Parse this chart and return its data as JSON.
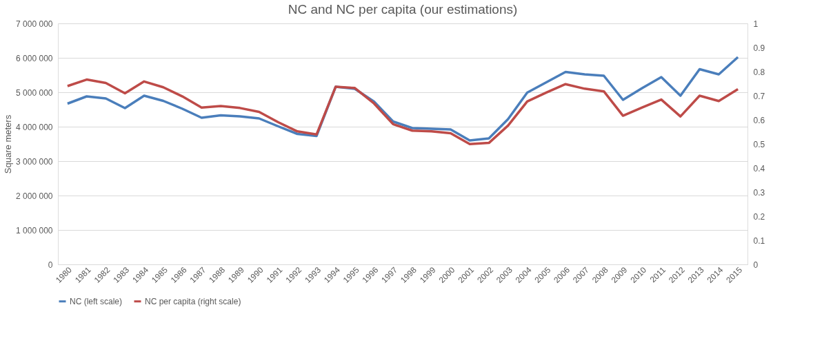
{
  "chart_data": {
    "type": "line",
    "title": "NC and NC per capita (our estimations)",
    "ylabel": "Square meters",
    "categories": [
      "1980",
      "1981",
      "1982",
      "1983",
      "1984",
      "1985",
      "1986",
      "1987",
      "1988",
      "1989",
      "1990",
      "1991",
      "1992",
      "1993",
      "1994",
      "1995",
      "1996",
      "1997",
      "1998",
      "1999",
      "2000",
      "2001",
      "2002",
      "2003",
      "2004",
      "2005",
      "2006",
      "2007",
      "2008",
      "2009",
      "2010",
      "2011",
      "2012",
      "2013",
      "2014",
      "2015"
    ],
    "series": [
      {
        "name": "NC (left scale)",
        "color": "#4a7ebb",
        "axis": "y",
        "values": [
          4670000,
          4880000,
          4820000,
          4540000,
          4900000,
          4750000,
          4520000,
          4260000,
          4330000,
          4300000,
          4240000,
          4010000,
          3790000,
          3730000,
          5160000,
          5100000,
          4730000,
          4150000,
          3960000,
          3940000,
          3920000,
          3600000,
          3660000,
          4220000,
          4990000,
          5290000,
          5590000,
          5520000,
          5480000,
          4780000,
          5120000,
          5440000,
          4900000,
          5670000,
          5520000,
          6020000
        ]
      },
      {
        "name": "NC per capita (right scale)",
        "color": "#be4b48",
        "axis": "y2",
        "values": [
          0.74,
          0.767,
          0.753,
          0.71,
          0.759,
          0.735,
          0.697,
          0.651,
          0.657,
          0.649,
          0.633,
          0.59,
          0.552,
          0.539,
          0.737,
          0.732,
          0.668,
          0.582,
          0.555,
          0.552,
          0.544,
          0.499,
          0.504,
          0.576,
          0.676,
          0.713,
          0.748,
          0.729,
          0.718,
          0.617,
          0.651,
          0.684,
          0.614,
          0.7,
          0.678,
          0.727
        ]
      }
    ],
    "ylim": [
      0,
      7000000
    ],
    "yticks": [
      {
        "value": 0,
        "label": "0"
      },
      {
        "value": 1000000,
        "label": "1 000 000"
      },
      {
        "value": 2000000,
        "label": "2 000 000"
      },
      {
        "value": 3000000,
        "label": "3 000 000"
      },
      {
        "value": 4000000,
        "label": "4 000 000"
      },
      {
        "value": 5000000,
        "label": "5 000 000"
      },
      {
        "value": 6000000,
        "label": "6 000 000"
      },
      {
        "value": 7000000,
        "label": "7 000 000"
      }
    ],
    "y2lim": [
      0,
      1
    ],
    "y2ticks": [
      0,
      0.1,
      0.2,
      0.3,
      0.4,
      0.5,
      0.6,
      0.7,
      0.8,
      0.9,
      1
    ],
    "grid": "y",
    "legend": "bottom",
    "line_style": "solid",
    "marker": "none"
  }
}
